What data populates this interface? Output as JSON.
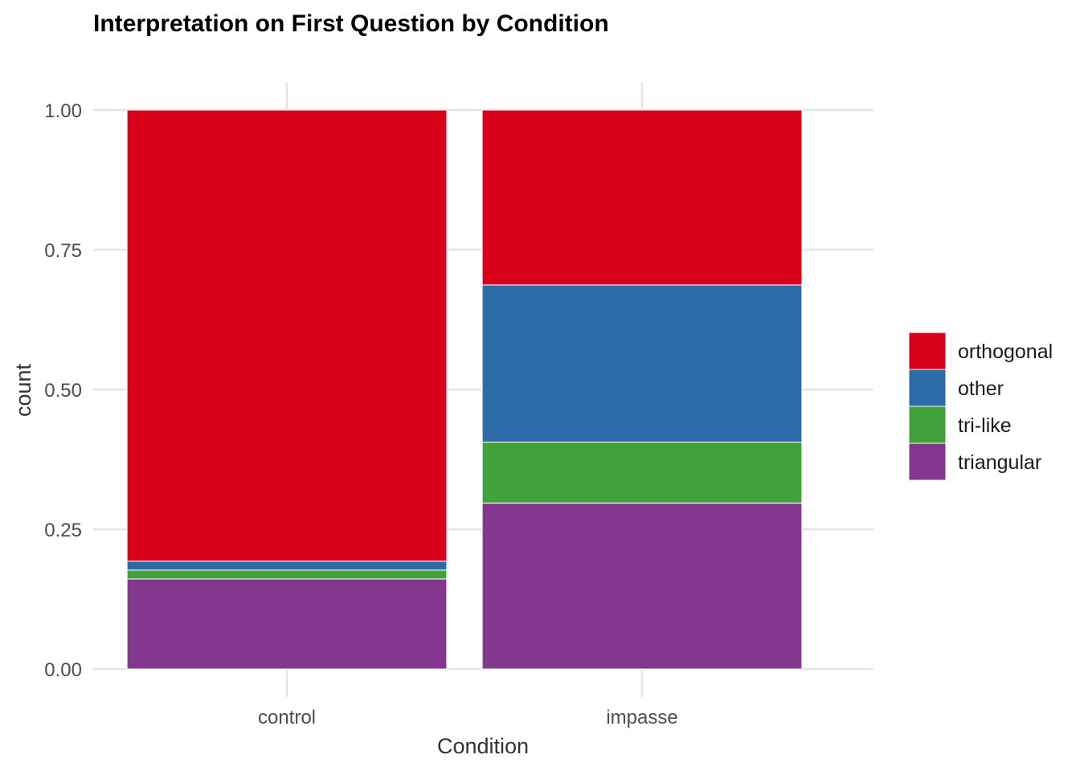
{
  "chart_data": {
    "type": "bar",
    "stacked": true,
    "title": "Interpretation on First Question by Condition",
    "xlabel": "Condition",
    "ylabel": "count",
    "ylim": [
      0,
      1
    ],
    "yticks": [
      0,
      0.25,
      0.5,
      0.75,
      1
    ],
    "ytick_labels": [
      "0.00",
      "0.25",
      "0.50",
      "0.75",
      "1.00"
    ],
    "categories": [
      "control",
      "impasse"
    ],
    "series": [
      {
        "name": "triangular",
        "color": "#83378F",
        "values": [
          0.161,
          0.297
        ]
      },
      {
        "name": "tri-like",
        "color": "#41A23B",
        "values": [
          0.016,
          0.109
        ]
      },
      {
        "name": "other",
        "color": "#2D6AA8",
        "values": [
          0.016,
          0.281
        ]
      },
      {
        "name": "orthogonal",
        "color": "#D90019",
        "values": [
          0.807,
          0.313
        ]
      }
    ],
    "legend": {
      "position": "right",
      "order": [
        "orthogonal",
        "other",
        "tri-like",
        "triangular"
      ]
    },
    "grid": true
  }
}
